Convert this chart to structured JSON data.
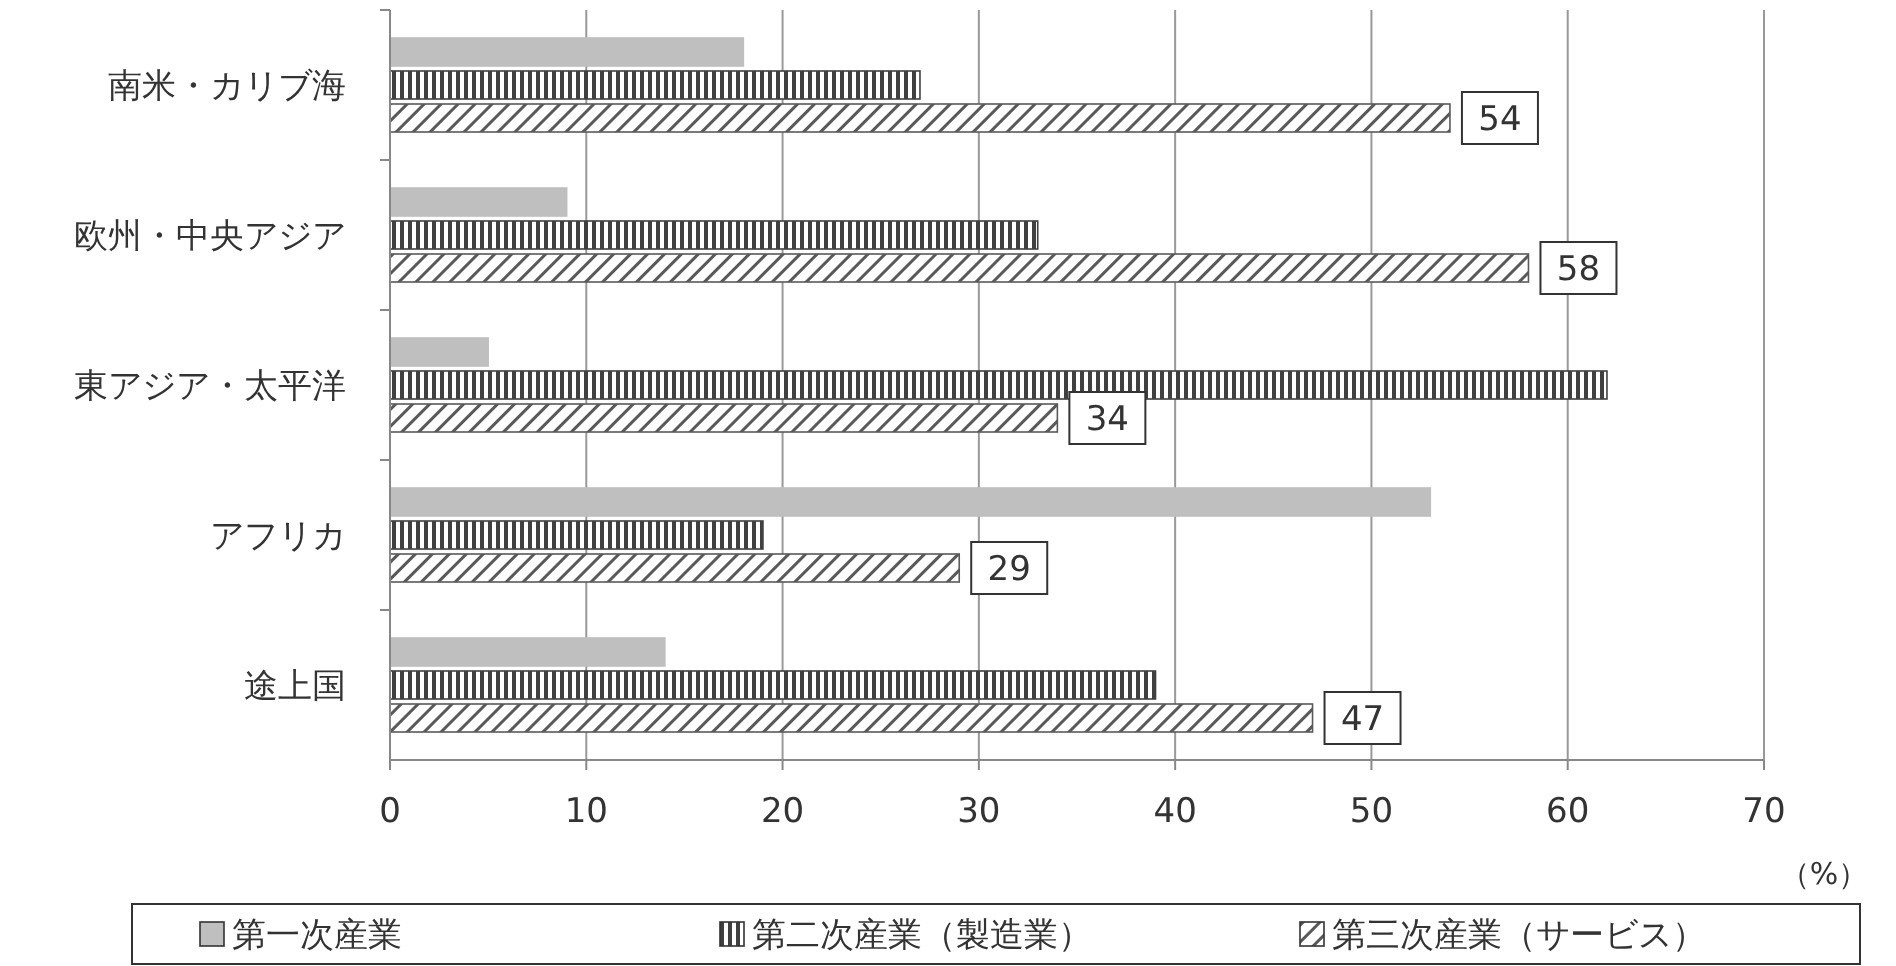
{
  "chart_data": {
    "type": "bar",
    "orientation": "horizontal",
    "xlabel": "（%）",
    "categories": [
      "南米・カリブ海",
      "欧州・中央アジア",
      "東アジア・太平洋",
      "アフリカ",
      "途上国"
    ],
    "series": [
      {
        "name": "第一次産業",
        "color": "#bfbfbf",
        "values": [
          18,
          9,
          5,
          53,
          14
        ]
      },
      {
        "name": "第二次産業（製造業）",
        "color": "#404040",
        "values": [
          27,
          33,
          62,
          19,
          39
        ]
      },
      {
        "name": "第三次産業（サービス）",
        "color": "#595959",
        "values": [
          54,
          58,
          34,
          29,
          47
        ],
        "value_labels": [
          "54",
          "58",
          "34",
          "29",
          "47"
        ]
      }
    ],
    "xlim": [
      0,
      70
    ],
    "xticks": [
      0,
      10,
      20,
      30,
      40,
      50,
      60,
      70
    ],
    "grid": "x",
    "legend": "bottom"
  }
}
